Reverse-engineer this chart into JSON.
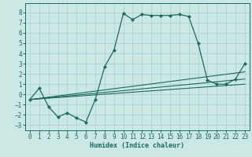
{
  "xlabel": "Humidex (Indice chaleur)",
  "bg_color": "#cce8e5",
  "line_color": "#1a6b5a",
  "grid_color": "#aacfcc",
  "xlim": [
    -0.5,
    23.5
  ],
  "ylim": [
    -3.5,
    8.9
  ],
  "xticks": [
    0,
    1,
    2,
    3,
    4,
    5,
    6,
    7,
    8,
    9,
    10,
    11,
    12,
    13,
    14,
    15,
    16,
    17,
    18,
    19,
    20,
    21,
    22,
    23
  ],
  "yticks": [
    -3,
    -2,
    -1,
    0,
    1,
    2,
    3,
    4,
    5,
    6,
    7,
    8
  ],
  "main_line": {
    "x": [
      0,
      1,
      2,
      3,
      4,
      5,
      6,
      7,
      8,
      9,
      10,
      11,
      12,
      13,
      14,
      15,
      16,
      17,
      18,
      19,
      20,
      21,
      22,
      23
    ],
    "y": [
      -0.5,
      0.6,
      -1.2,
      -2.2,
      -1.8,
      -2.3,
      -2.7,
      -0.5,
      2.7,
      4.3,
      7.9,
      7.3,
      7.8,
      7.7,
      7.7,
      7.7,
      7.8,
      7.6,
      5.0,
      1.4,
      1.0,
      1.0,
      1.5,
      3.0
    ]
  },
  "straight_lines": [
    {
      "x": [
        0,
        23
      ],
      "y": [
        -0.5,
        1.0
      ]
    },
    {
      "x": [
        0,
        23
      ],
      "y": [
        -0.5,
        1.5
      ]
    },
    {
      "x": [
        0,
        23
      ],
      "y": [
        -0.5,
        2.2
      ]
    }
  ]
}
